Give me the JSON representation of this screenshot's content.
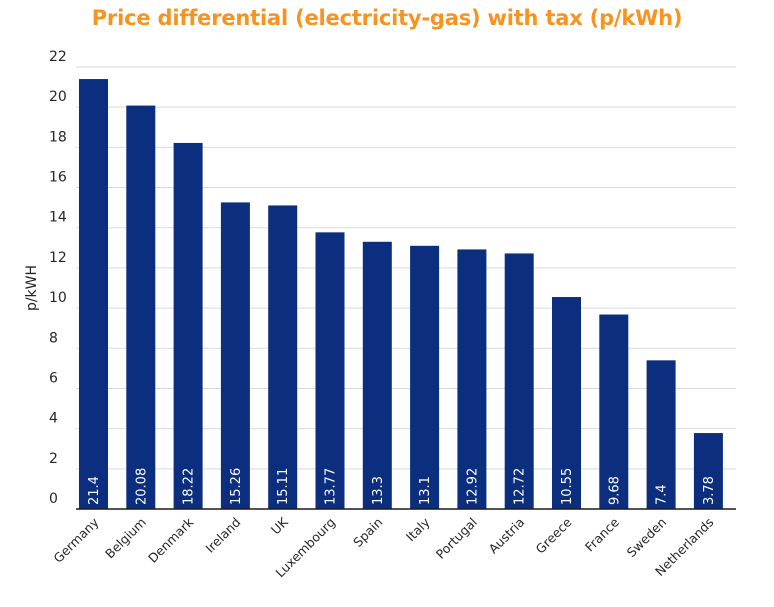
{
  "chart_data": {
    "type": "bar",
    "title": "Price differential (electricity-gas) with tax (p/kWh)",
    "xlabel": "",
    "ylabel": "p/kWH",
    "ylim": [
      0,
      22
    ],
    "yticks": [
      0,
      2,
      4,
      6,
      8,
      10,
      12,
      14,
      16,
      18,
      20,
      22
    ],
    "grid": true,
    "categories": [
      "Germany",
      "Belgium",
      "Denmark",
      "Ireland",
      "UK",
      "Luxembourg",
      "Spain",
      "Italy",
      "Portugal",
      "Austria",
      "Greece",
      "France",
      "Sweden",
      "Netherlands"
    ],
    "values": [
      21.4,
      20.08,
      18.22,
      15.26,
      15.11,
      13.77,
      13.3,
      13.1,
      12.92,
      12.72,
      10.55,
      9.68,
      7.4,
      3.78
    ],
    "value_labels": [
      "21.4",
      "20.08",
      "18.22",
      "15.26",
      "15.11",
      "13.77",
      "13.3",
      "13.1",
      "12.92",
      "12.72",
      "10.55",
      "9.68",
      "7.4",
      "3.78"
    ],
    "colors": {
      "bar": "#0B2E7F",
      "title": "#F7931E",
      "grid": "#D9D9D9",
      "axis": "#1A1A1A"
    }
  }
}
